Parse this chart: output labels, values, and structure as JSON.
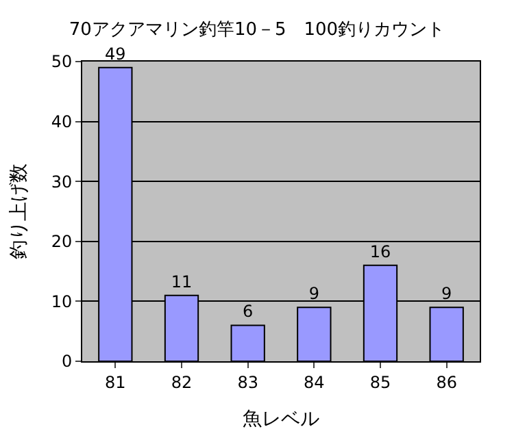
{
  "chart_data": {
    "type": "bar",
    "title": "70アクアマリン釣竿10－5　100釣りカウント",
    "xlabel": "魚レベル",
    "ylabel": "釣り上げ数",
    "categories": [
      "81",
      "82",
      "83",
      "84",
      "85",
      "86"
    ],
    "values": [
      49,
      11,
      6,
      9,
      16,
      9
    ],
    "color": "#9999ff",
    "ylim": [
      0,
      50
    ],
    "yticks": [
      0,
      10,
      20,
      30,
      40,
      50
    ],
    "grid": "y",
    "data_labels": true
  }
}
